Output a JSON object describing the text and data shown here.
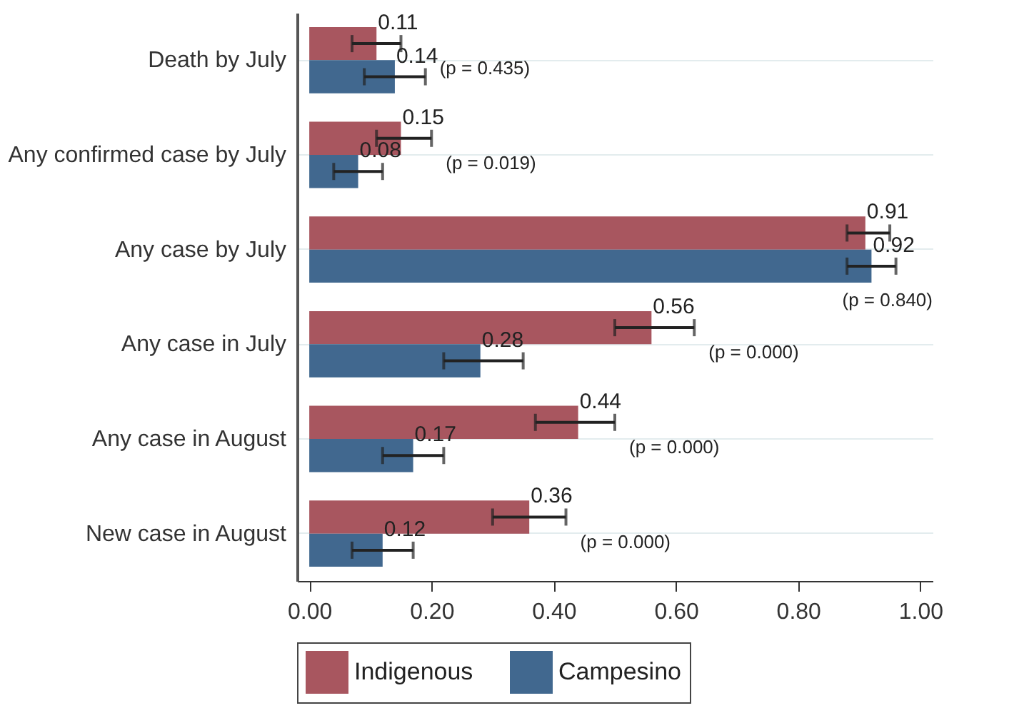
{
  "chart_data": {
    "type": "bar",
    "orientation": "horizontal",
    "categories": [
      "Death by July",
      "Any confirmed case by July",
      "Any case by July",
      "Any case in July",
      "Any case in August",
      "New case in August"
    ],
    "series": [
      {
        "name": "Indigenous",
        "color": "#a8565f",
        "values": [
          0.11,
          0.15,
          0.91,
          0.56,
          0.44,
          0.36
        ],
        "errors": [
          [
            0.07,
            0.15
          ],
          [
            0.11,
            0.2
          ],
          [
            0.88,
            0.95
          ],
          [
            0.5,
            0.63
          ],
          [
            0.37,
            0.5
          ],
          [
            0.3,
            0.42
          ]
        ]
      },
      {
        "name": "Campesino",
        "color": "#41688f",
        "values": [
          0.14,
          0.08,
          0.92,
          0.28,
          0.17,
          0.12
        ],
        "errors": [
          [
            0.09,
            0.19
          ],
          [
            0.04,
            0.12
          ],
          [
            0.88,
            0.96
          ],
          [
            0.22,
            0.35
          ],
          [
            0.12,
            0.22
          ],
          [
            0.07,
            0.17
          ]
        ]
      }
    ],
    "xlim": [
      -0.02,
      1.02
    ],
    "xticks": [
      {
        "value": 0,
        "label": "0.00"
      },
      {
        "value": 0.2,
        "label": "0.20"
      },
      {
        "value": 0.4,
        "label": "0.40"
      },
      {
        "value": 0.6,
        "label": "0.60"
      },
      {
        "value": 0.8,
        "label": "0.80"
      },
      {
        "value": 1,
        "label": "1.00"
      }
    ],
    "data_labels": true,
    "grid": "y",
    "legend": "bottom",
    "annotations": [
      "(p = 0.435)",
      "(p = 0.019)",
      "(p = 0.840)",
      "(p = 0.000)",
      "(p = 0.000)",
      "(p = 0.000)"
    ]
  }
}
